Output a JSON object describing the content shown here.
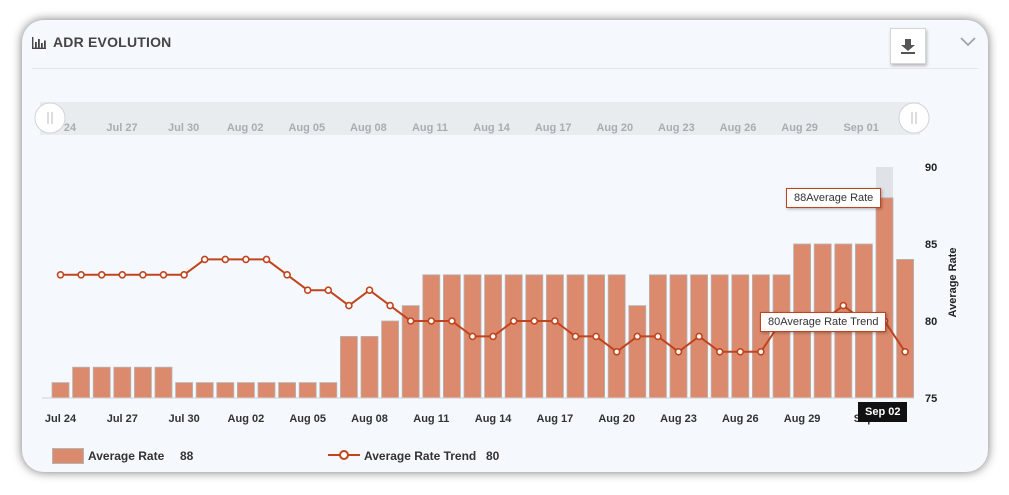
{
  "header": {
    "title": "ADR EVOLUTION"
  },
  "icons": {
    "title": "bar-chart-icon",
    "download": "download-icon",
    "collapse": "chevron-down-icon"
  },
  "navigator": {
    "labels": [
      "24",
      "Jul 27",
      "Jul 30",
      "Aug 02",
      "Aug 05",
      "Aug 08",
      "Aug 11",
      "Aug 14",
      "Aug 17",
      "Aug 20",
      "Aug 23",
      "Aug 26",
      "Aug 29",
      "Sep 01"
    ]
  },
  "tooltips": {
    "bar": "88Average Rate",
    "trend": "80Average Rate Trend",
    "x_date": "Sep 02"
  },
  "legend": {
    "bar_label": "Average Rate",
    "bar_value": "88",
    "trend_label": "Average Rate Trend",
    "trend_value": "80"
  },
  "colors": {
    "bar": "#dc8a6e",
    "bar_border": "#b5b5b5",
    "trend": "#c0441d",
    "highlight": "#dfe3e8"
  },
  "chart_data": {
    "type": "bar",
    "x": [
      "Jul 24",
      "Jul 25",
      "Jul 26",
      "Jul 27",
      "Jul 28",
      "Jul 29",
      "Jul 30",
      "Jul 31",
      "Aug 01",
      "Aug 02",
      "Aug 03",
      "Aug 04",
      "Aug 05",
      "Aug 06",
      "Aug 07",
      "Aug 08",
      "Aug 09",
      "Aug 10",
      "Aug 11",
      "Aug 12",
      "Aug 13",
      "Aug 14",
      "Aug 15",
      "Aug 16",
      "Aug 17",
      "Aug 18",
      "Aug 19",
      "Aug 20",
      "Aug 21",
      "Aug 22",
      "Aug 23",
      "Aug 24",
      "Aug 25",
      "Aug 26",
      "Aug 27",
      "Aug 28",
      "Aug 29",
      "Aug 30",
      "Aug 31",
      "Sep 01",
      "Sep 02",
      "Sep 03"
    ],
    "x_tick_labels": [
      "Jul 24",
      "Jul 27",
      "Jul 30",
      "Aug 02",
      "Aug 05",
      "Aug 08",
      "Aug 11",
      "Aug 14",
      "Aug 17",
      "Aug 20",
      "Aug 23",
      "Aug 26",
      "Aug 29",
      "Sep"
    ],
    "series": [
      {
        "name": "Average Rate",
        "type": "bar",
        "values": [
          76,
          77,
          77,
          77,
          77,
          77,
          76,
          76,
          76,
          76,
          76,
          76,
          76,
          76,
          79,
          79,
          80,
          81,
          83,
          83,
          83,
          83,
          83,
          83,
          83,
          83,
          83,
          83,
          81,
          83,
          83,
          83,
          83,
          83,
          83,
          83,
          85,
          85,
          85,
          85,
          88,
          84
        ]
      },
      {
        "name": "Average Rate Trend",
        "type": "line",
        "values": [
          83,
          83,
          83,
          83,
          83,
          83,
          83,
          84,
          84,
          84,
          84,
          83,
          82,
          82,
          81,
          82,
          81,
          80,
          80,
          80,
          79,
          79,
          80,
          80,
          80,
          79,
          79,
          78,
          79,
          79,
          78,
          79,
          78,
          78,
          78,
          80,
          80,
          80,
          81,
          80,
          80,
          78
        ]
      }
    ],
    "ylabel": "Average Rate",
    "ylim": [
      75,
      90
    ],
    "yticks": [
      75,
      80,
      85,
      90
    ],
    "highlight_index": 40
  }
}
